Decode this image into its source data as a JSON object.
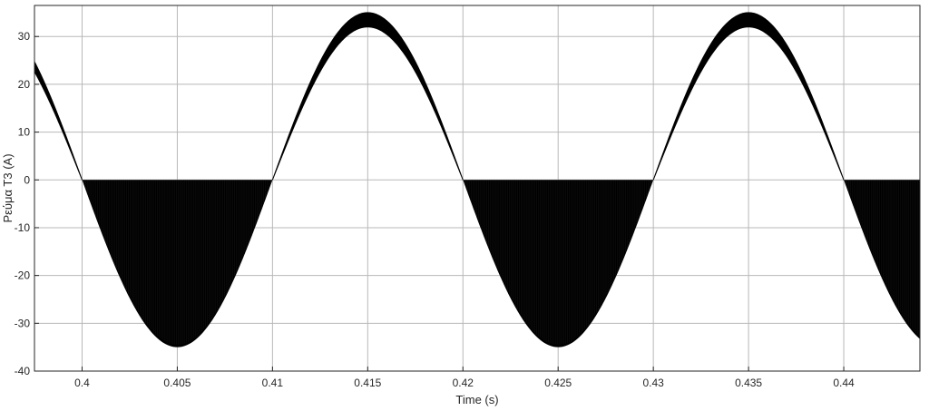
{
  "chart_data": {
    "type": "line",
    "title": "",
    "xlabel": "Time (s)",
    "ylabel": "Ρεύμα Τ3 (A)",
    "xlim": [
      0.3975,
      0.444
    ],
    "ylim": [
      -40,
      36.5
    ],
    "xticks": [
      0.4,
      0.405,
      0.41,
      0.415,
      0.42,
      0.425,
      0.43,
      0.435,
      0.44
    ],
    "xtick_labels": [
      "0.4",
      "0.405",
      "0.41",
      "0.415",
      "0.42",
      "0.425",
      "0.43",
      "0.435",
      "0.44"
    ],
    "yticks": [
      -40,
      -30,
      -20,
      -10,
      0,
      10,
      20,
      30
    ],
    "ytick_labels": [
      "-40",
      "-30",
      "-20",
      "-10",
      "0",
      "10",
      "20",
      "30"
    ],
    "grid": true,
    "colors": {
      "series": "#000000",
      "grid": "#b8b8b8",
      "axes": "#262626",
      "background": "#ffffff"
    },
    "series": [
      {
        "description_source": "visual",
        "frequency_hz": 50,
        "zero_crossings_s": [
          0.4,
          0.41,
          0.42,
          0.43,
          0.44
        ],
        "positive_half_cycles": {
          "envelope_upper_peak": 35,
          "envelope_lower_peak": 32,
          "peaks_at_s": [
            0.415,
            0.435
          ]
        },
        "negative_half_cycles": {
          "fill_from": 0,
          "envelope_peak": -35,
          "peaks_at_s": [
            0.405,
            0.425
          ]
        }
      }
    ]
  }
}
